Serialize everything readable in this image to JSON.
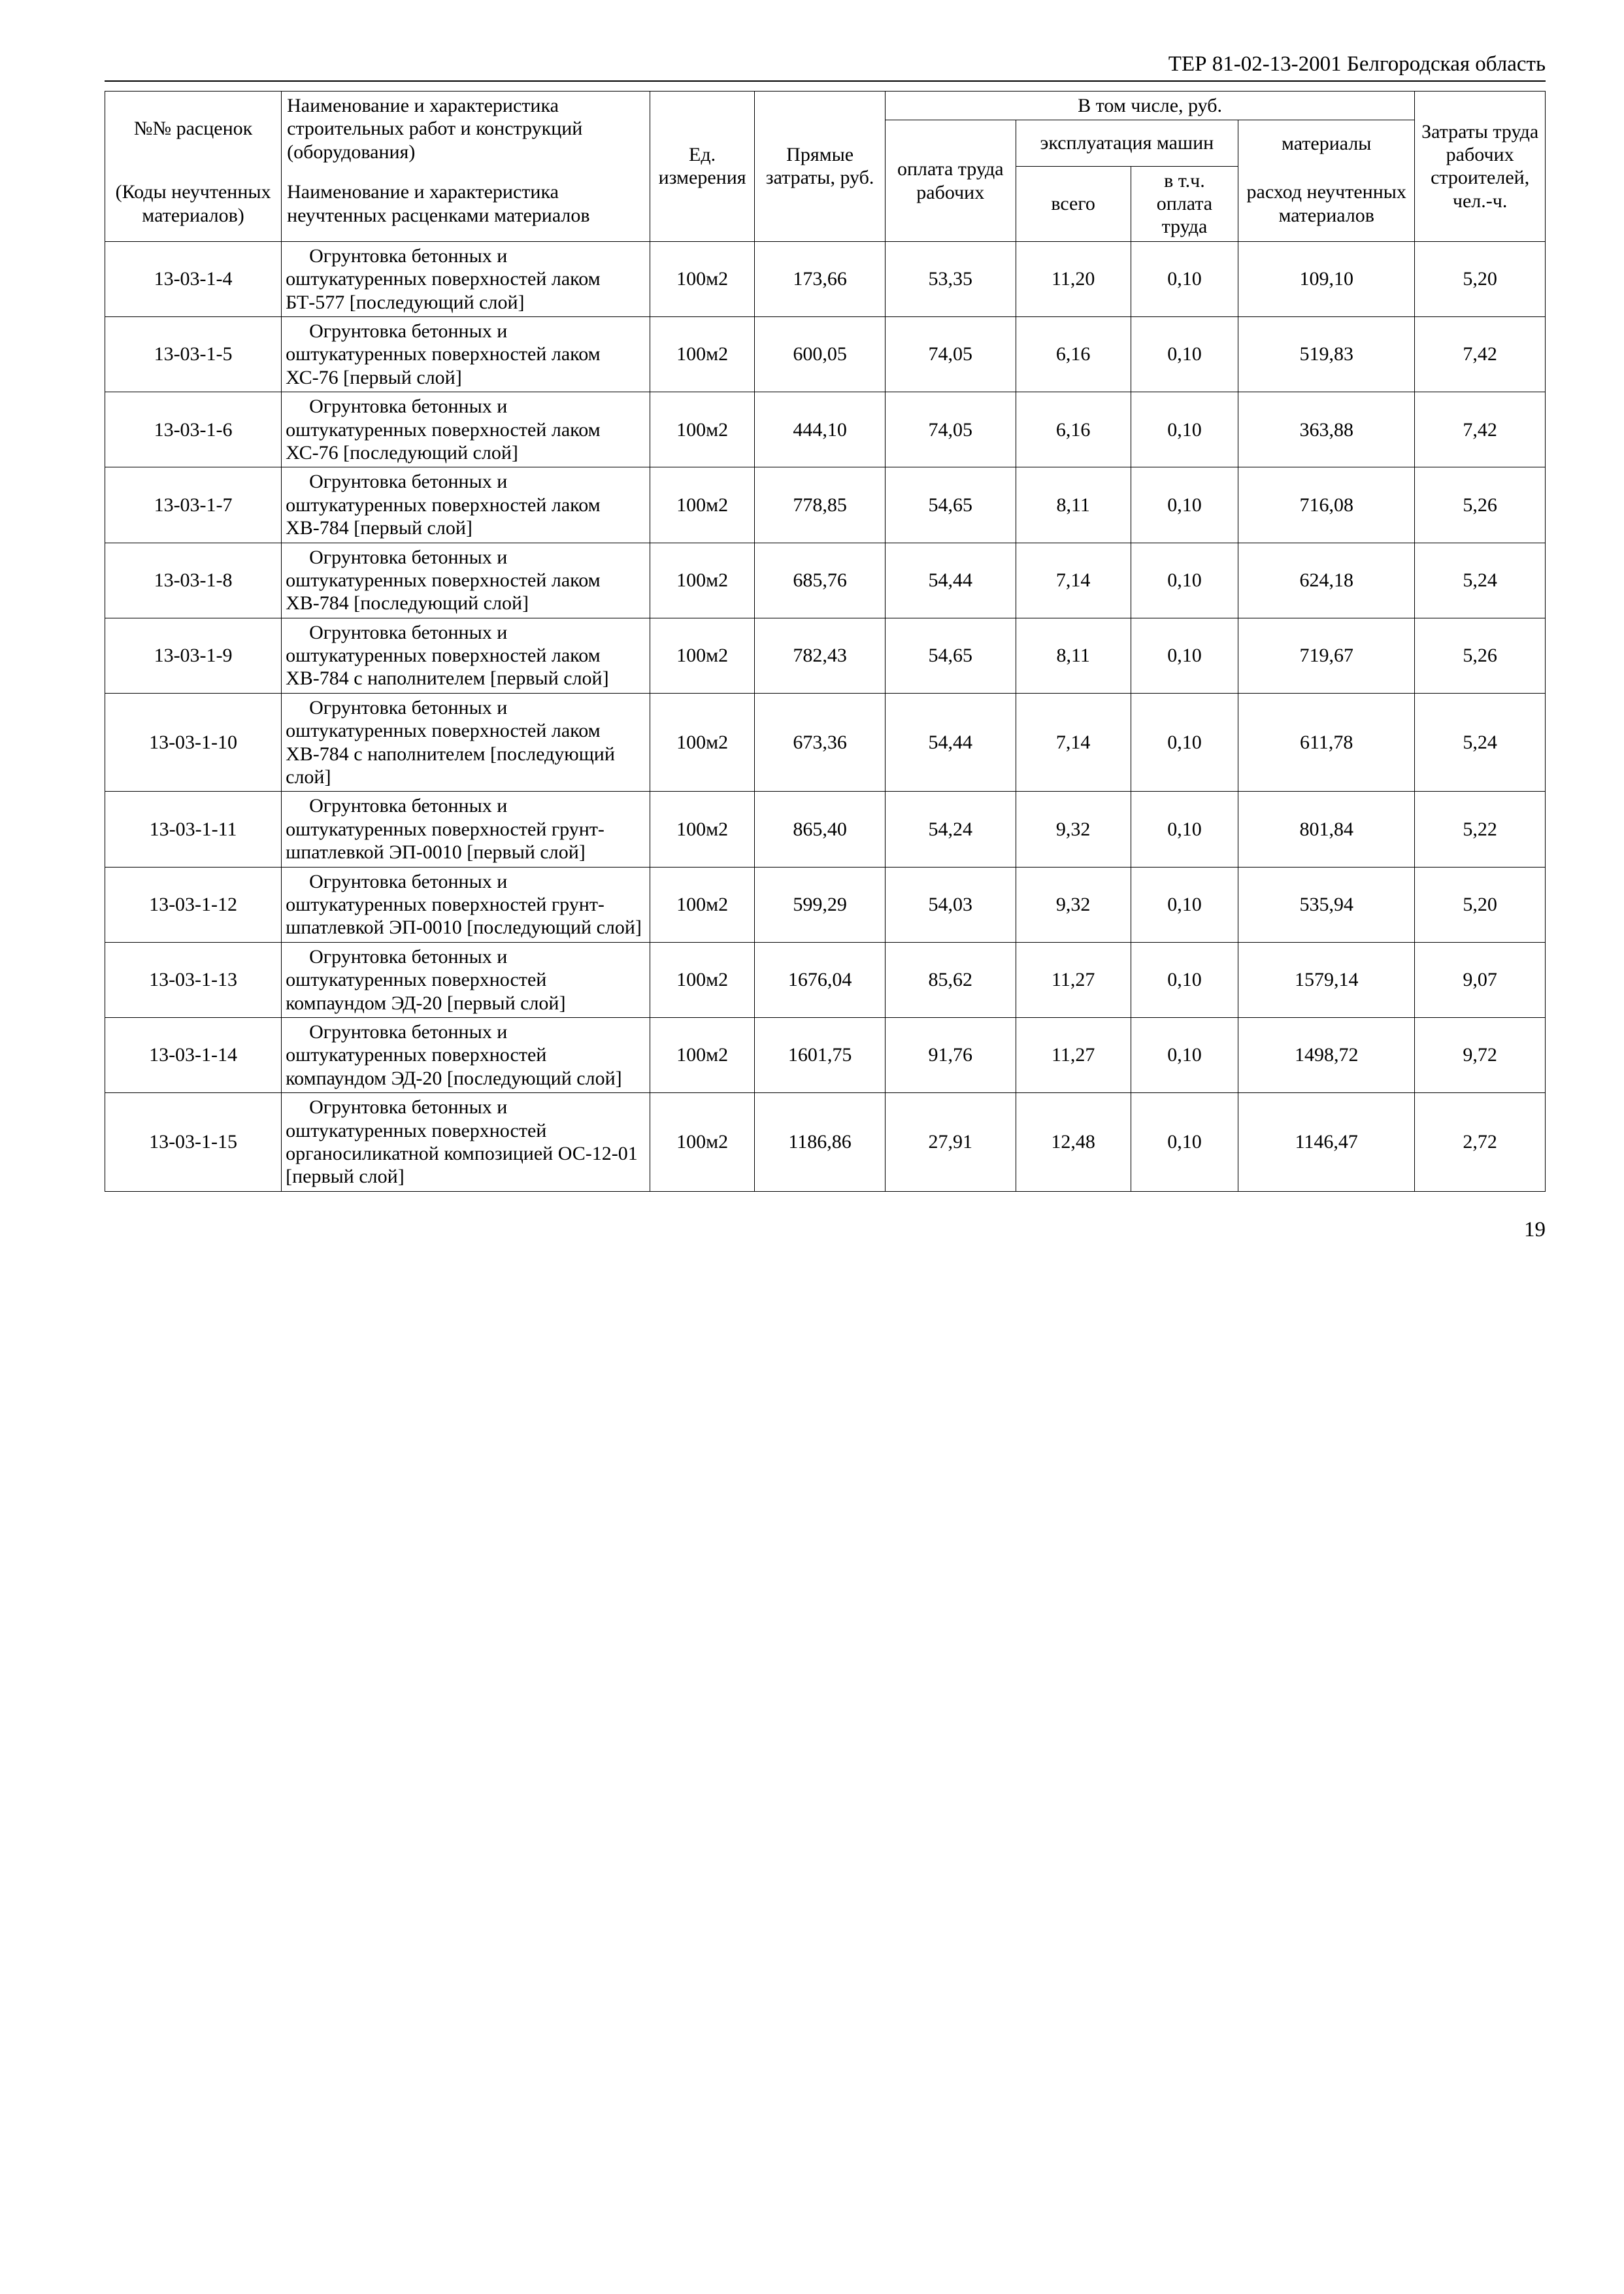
{
  "page": {
    "header": "ТЕР 81-02-13-2001 Белгородская область",
    "pageNumber": "19"
  },
  "tableHeaders": {
    "code_top": "№№ расценок",
    "code_bottom": "(Коды неуч­тенных мате­риалов)",
    "name_top": "Наименование и характеристика строительных работ и конструкций (оборудования)",
    "name_bottom": "Наименование и характеристика неучтенных расценками материалов",
    "unit": "Ед. измерения",
    "direct": "Прямые затраты, руб.",
    "including": "В том числе, руб.",
    "labor": "оплата труда рабочих",
    "machines": "эксплуатация машин",
    "vsego": "всего",
    "vtch": "в т.ч. оплата труда",
    "materials": "материалы",
    "materials_bottom": "расход не­учтенных материалов",
    "workcost": "Затраты труда рабочих строи­телей, чел.-ч."
  },
  "rows": [
    {
      "code": "13-03-1-4",
      "name": "Огрунтовка бетонных и оштукатуренных поверх­ностей лаком БТ-577 [по­следующий слой]",
      "unit": "100м2",
      "direct": "173,66",
      "labor": "53,35",
      "vsego": "11,20",
      "vtch": "0,10",
      "mat": "109,10",
      "zatr": "5,20"
    },
    {
      "code": "13-03-1-5",
      "name": "Огрунтовка бетонных и оштукатуренных поверх­ностей лаком ХС-76 [пер­вый слой]",
      "unit": "100м2",
      "direct": "600,05",
      "labor": "74,05",
      "vsego": "6,16",
      "vtch": "0,10",
      "mat": "519,83",
      "zatr": "7,42"
    },
    {
      "code": "13-03-1-6",
      "name": "Огрунтовка бетонных и оштукатуренных поверх­ностей лаком ХС-76 [по­следующий слой]",
      "unit": "100м2",
      "direct": "444,10",
      "labor": "74,05",
      "vsego": "6,16",
      "vtch": "0,10",
      "mat": "363,88",
      "zatr": "7,42"
    },
    {
      "code": "13-03-1-7",
      "name": "Огрунтовка бетонных и оштукатуренных поверх­ностей лаком ХВ-784 [первый слой]",
      "unit": "100м2",
      "direct": "778,85",
      "labor": "54,65",
      "vsego": "8,11",
      "vtch": "0,10",
      "mat": "716,08",
      "zatr": "5,26"
    },
    {
      "code": "13-03-1-8",
      "name": "Огрунтовка бетонных и оштукатуренных поверх­ностей лаком ХВ-784 [по­следующий слой]",
      "unit": "100м2",
      "direct": "685,76",
      "labor": "54,44",
      "vsego": "7,14",
      "vtch": "0,10",
      "mat": "624,18",
      "zatr": "5,24"
    },
    {
      "code": "13-03-1-9",
      "name": "Огрунтовка бетонных и оштукатуренных поверх­ностей лаком ХВ-784 с наполнителем [первый слой]",
      "unit": "100м2",
      "direct": "782,43",
      "labor": "54,65",
      "vsego": "8,11",
      "vtch": "0,10",
      "mat": "719,67",
      "zatr": "5,26"
    },
    {
      "code": "13-03-1-10",
      "name": "Огрунтовка бетонных и оштукатуренных поверх­ностей лаком ХВ-784 с наполнителем [после­дующий слой]",
      "unit": "100м2",
      "direct": "673,36",
      "labor": "54,44",
      "vsego": "7,14",
      "vtch": "0,10",
      "mat": "611,78",
      "zatr": "5,24"
    },
    {
      "code": "13-03-1-11",
      "name": "Огрунтовка бетонных и оштукатуренных поверх­ностей грунт-шпатлевкой ЭП-0010 [первый слой]",
      "unit": "100м2",
      "direct": "865,40",
      "labor": "54,24",
      "vsego": "9,32",
      "vtch": "0,10",
      "mat": "801,84",
      "zatr": "5,22"
    },
    {
      "code": "13-03-1-12",
      "name": "Огрунтовка бетонных и оштукатуренных поверх­ностей грунт-шпатлевкой ЭП-0010 [последующий слой]",
      "unit": "100м2",
      "direct": "599,29",
      "labor": "54,03",
      "vsego": "9,32",
      "vtch": "0,10",
      "mat": "535,94",
      "zatr": "5,20"
    },
    {
      "code": "13-03-1-13",
      "name": "Огрунтовка бетонных и оштукатуренных поверх­ностей компаундом ЭД-20 [первый слой]",
      "unit": "100м2",
      "direct": "1676,04",
      "labor": "85,62",
      "vsego": "11,27",
      "vtch": "0,10",
      "mat": "1579,14",
      "zatr": "9,07"
    },
    {
      "code": "13-03-1-14",
      "name": "Огрунтовка бетонных и оштукатуренных поверх­ностей компаундом ЭД-20 [последующий слой]",
      "unit": "100м2",
      "direct": "1601,75",
      "labor": "91,76",
      "vsego": "11,27",
      "vtch": "0,10",
      "mat": "1498,72",
      "zatr": "9,72"
    },
    {
      "code": "13-03-1-15",
      "name": "Огрунтовка бетонных и оштукатуренных поверх­ностей органосиликатной композицией ОС-12-01 [первый слой]",
      "unit": "100м2",
      "direct": "1186,86",
      "labor": "27,91",
      "vsego": "12,48",
      "vtch": "0,10",
      "mat": "1146,47",
      "zatr": "2,72"
    }
  ]
}
